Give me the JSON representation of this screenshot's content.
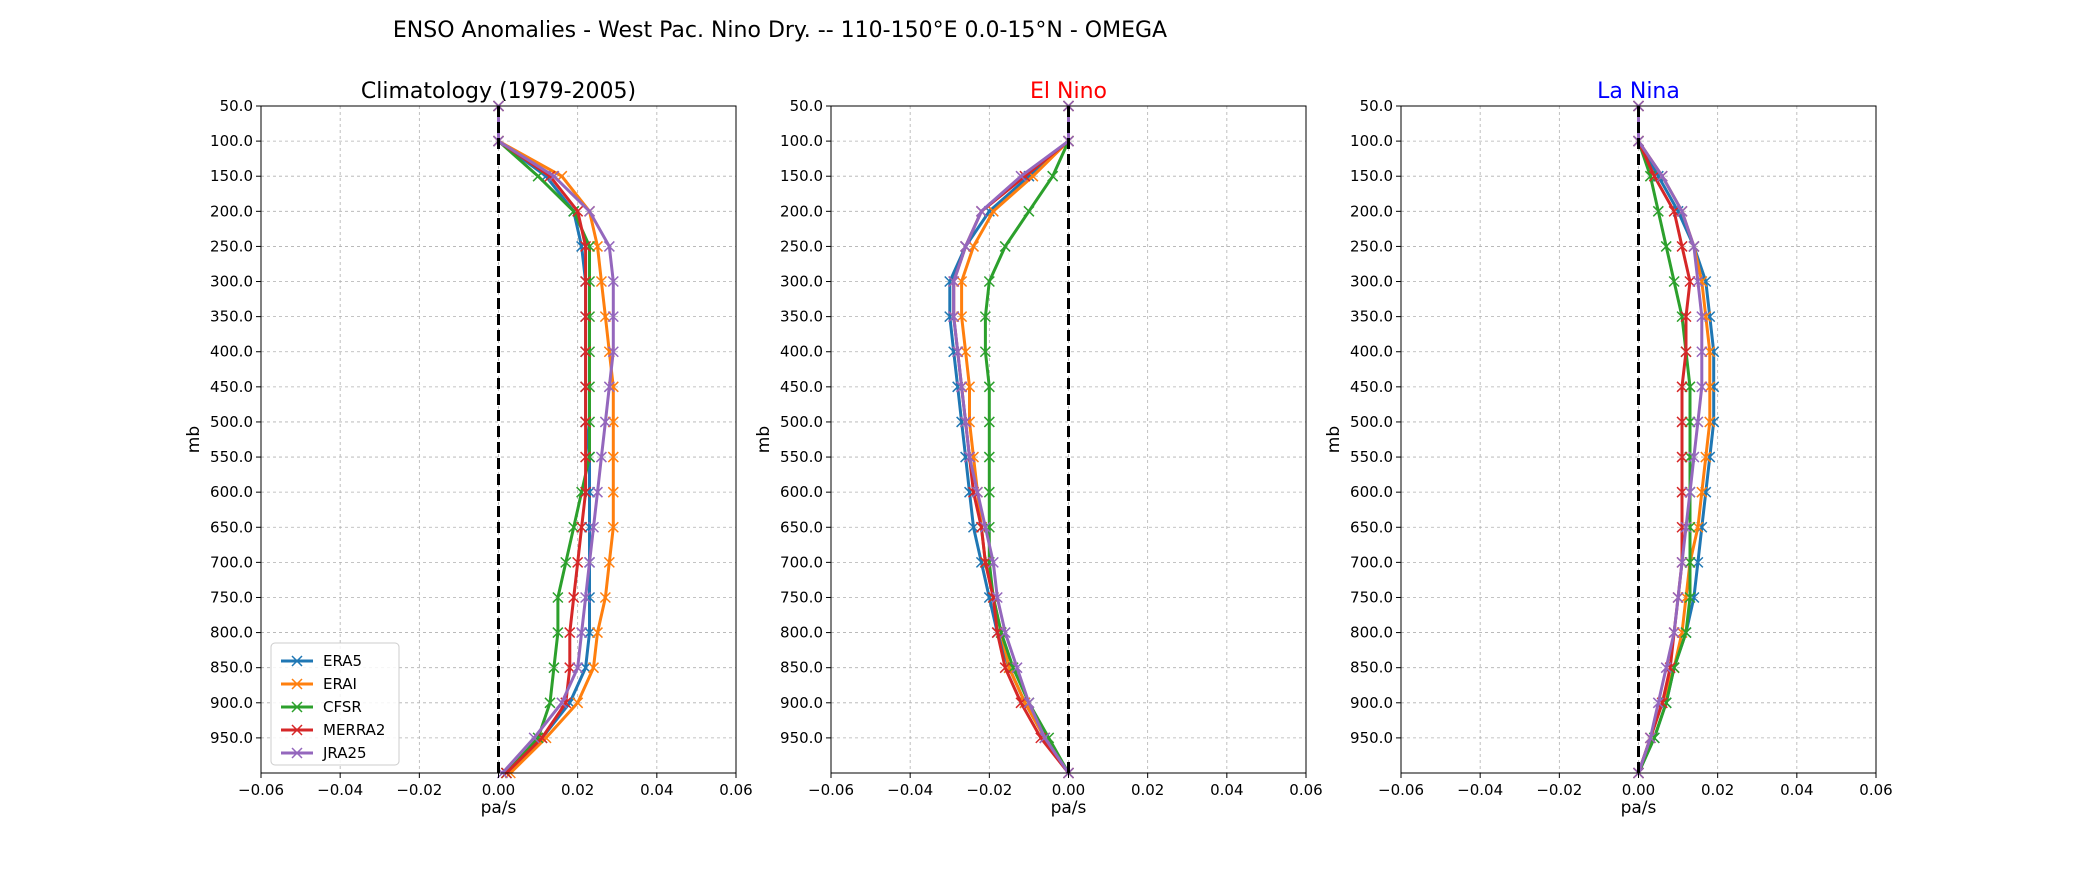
{
  "chart_data": {
    "title": "ENSO Anomalies - West Pac. Nino Dry. -- 110-150°E 0.0-15°N - OMEGA",
    "type": "line",
    "y": [
      50,
      100,
      150,
      200,
      250,
      300,
      350,
      400,
      450,
      500,
      550,
      600,
      650,
      700,
      750,
      800,
      850,
      900,
      950,
      1000
    ],
    "yticks": [
      50,
      100,
      150,
      200,
      250,
      300,
      350,
      400,
      450,
      500,
      550,
      600,
      650,
      700,
      750,
      800,
      850,
      900,
      950
    ],
    "ytick_labels": [
      "50.0",
      "100.0",
      "150.0",
      "200.0",
      "250.0",
      "300.0",
      "350.0",
      "400.0",
      "450.0",
      "500.0",
      "550.0",
      "600.0",
      "650.0",
      "700.0",
      "750.0",
      "800.0",
      "850.0",
      "900.0",
      "950.0"
    ],
    "xticks": [
      -0.06,
      -0.04,
      -0.02,
      0.0,
      0.02,
      0.04,
      0.06
    ],
    "xtick_labels": [
      "−0.06",
      "−0.04",
      "−0.02",
      "0.00",
      "0.02",
      "0.04",
      "0.06"
    ],
    "xlim": [
      -0.06,
      0.06
    ],
    "ylim": [
      1000,
      50
    ],
    "y_inverted": true,
    "grid": true,
    "legend_placement": "lower-left",
    "zero_line": {
      "x": 0,
      "style": "dashed",
      "color": "#000000"
    },
    "series_styles": [
      {
        "name": "ERA5",
        "color": "#1f77b4"
      },
      {
        "name": "ERAI",
        "color": "#ff7f0e"
      },
      {
        "name": "CFSR",
        "color": "#2ca02c"
      },
      {
        "name": "MERRA2",
        "color": "#d62728"
      },
      {
        "name": "JRA25",
        "color": "#9467bd"
      }
    ],
    "panels": [
      {
        "title": "Climatology (1979-2005)",
        "title_color": "#000000",
        "xlabel": "pa/s",
        "ylabel": "mb",
        "legend": true,
        "series": [
          {
            "name": "ERA5",
            "values": [
              0.0,
              0.0,
              0.012,
              0.019,
              0.021,
              0.022,
              0.022,
              0.022,
              0.022,
              0.022,
              0.023,
              0.023,
              0.023,
              0.023,
              0.023,
              0.023,
              0.022,
              0.018,
              0.011,
              0.002
            ]
          },
          {
            "name": "ERAI",
            "values": [
              0.0,
              0.0,
              0.016,
              0.023,
              0.025,
              0.026,
              0.027,
              0.028,
              0.029,
              0.029,
              0.029,
              0.029,
              0.029,
              0.028,
              0.027,
              0.025,
              0.024,
              0.02,
              0.012,
              0.003
            ]
          },
          {
            "name": "CFSR",
            "values": [
              0.0,
              0.0,
              0.01,
              0.019,
              0.023,
              0.023,
              0.023,
              0.023,
              0.023,
              0.023,
              0.023,
              0.021,
              0.019,
              0.017,
              0.015,
              0.015,
              0.014,
              0.013,
              0.01,
              0.002
            ]
          },
          {
            "name": "MERRA2",
            "values": [
              0.0,
              0.0,
              0.013,
              0.02,
              0.022,
              0.022,
              0.022,
              0.022,
              0.022,
              0.022,
              0.022,
              0.022,
              0.021,
              0.02,
              0.019,
              0.018,
              0.018,
              0.017,
              0.011,
              0.002
            ]
          },
          {
            "name": "JRA25",
            "values": [
              0.0,
              0.0,
              0.014,
              0.023,
              0.028,
              0.029,
              0.029,
              0.029,
              0.028,
              0.027,
              0.026,
              0.025,
              0.024,
              0.023,
              0.022,
              0.021,
              0.02,
              0.016,
              0.009,
              0.001
            ]
          }
        ]
      },
      {
        "title": "El Nino",
        "title_color": "#ff0000",
        "xlabel": "pa/s",
        "ylabel": "mb",
        "legend": false,
        "series": [
          {
            "name": "ERA5",
            "values": [
              0.0,
              0.0,
              -0.01,
              -0.02,
              -0.026,
              -0.03,
              -0.03,
              -0.029,
              -0.028,
              -0.027,
              -0.026,
              -0.025,
              -0.024,
              -0.022,
              -0.02,
              -0.018,
              -0.015,
              -0.011,
              -0.006,
              0.0
            ]
          },
          {
            "name": "ERAI",
            "values": [
              0.0,
              0.0,
              -0.009,
              -0.019,
              -0.024,
              -0.027,
              -0.027,
              -0.026,
              -0.025,
              -0.025,
              -0.024,
              -0.023,
              -0.022,
              -0.021,
              -0.019,
              -0.017,
              -0.015,
              -0.011,
              -0.006,
              0.0
            ]
          },
          {
            "name": "CFSR",
            "values": [
              0.0,
              0.0,
              -0.004,
              -0.01,
              -0.016,
              -0.02,
              -0.021,
              -0.021,
              -0.02,
              -0.02,
              -0.02,
              -0.02,
              -0.02,
              -0.02,
              -0.019,
              -0.017,
              -0.014,
              -0.01,
              -0.005,
              0.0
            ]
          },
          {
            "name": "MERRA2",
            "values": [
              0.0,
              0.0,
              -0.011,
              -0.022,
              -0.026,
              -0.029,
              -0.029,
              -0.028,
              -0.027,
              -0.026,
              -0.025,
              -0.024,
              -0.022,
              -0.021,
              -0.019,
              -0.018,
              -0.016,
              -0.012,
              -0.007,
              0.0
            ]
          },
          {
            "name": "JRA25",
            "values": [
              0.0,
              0.0,
              -0.012,
              -0.022,
              -0.026,
              -0.029,
              -0.029,
              -0.028,
              -0.027,
              -0.026,
              -0.025,
              -0.023,
              -0.021,
              -0.019,
              -0.018,
              -0.016,
              -0.013,
              -0.01,
              -0.006,
              0.0
            ]
          }
        ]
      },
      {
        "title": "La Nina",
        "title_color": "#0000ff",
        "xlabel": "pa/s",
        "ylabel": "mb",
        "legend": false,
        "series": [
          {
            "name": "ERA5",
            "values": [
              0.0,
              0.0,
              0.005,
              0.01,
              0.014,
              0.017,
              0.018,
              0.019,
              0.019,
              0.019,
              0.018,
              0.017,
              0.016,
              0.015,
              0.014,
              0.012,
              0.009,
              0.007,
              0.004,
              0.0
            ]
          },
          {
            "name": "ERAI",
            "values": [
              0.0,
              0.0,
              0.006,
              0.011,
              0.014,
              0.016,
              0.017,
              0.018,
              0.018,
              0.018,
              0.017,
              0.016,
              0.015,
              0.013,
              0.012,
              0.011,
              0.009,
              0.006,
              0.003,
              0.0
            ]
          },
          {
            "name": "CFSR",
            "values": [
              0.0,
              0.0,
              0.003,
              0.005,
              0.007,
              0.009,
              0.011,
              0.012,
              0.013,
              0.013,
              0.013,
              0.013,
              0.013,
              0.013,
              0.013,
              0.012,
              0.009,
              0.007,
              0.004,
              0.0
            ]
          },
          {
            "name": "MERRA2",
            "values": [
              0.0,
              0.0,
              0.004,
              0.009,
              0.011,
              0.013,
              0.012,
              0.012,
              0.011,
              0.011,
              0.011,
              0.011,
              0.011,
              0.011,
              0.01,
              0.009,
              0.008,
              0.006,
              0.003,
              0.0
            ]
          },
          {
            "name": "JRA25",
            "values": [
              0.0,
              0.0,
              0.006,
              0.011,
              0.014,
              0.015,
              0.016,
              0.016,
              0.016,
              0.015,
              0.014,
              0.013,
              0.012,
              0.011,
              0.01,
              0.009,
              0.007,
              0.005,
              0.003,
              0.0
            ]
          }
        ]
      }
    ]
  }
}
